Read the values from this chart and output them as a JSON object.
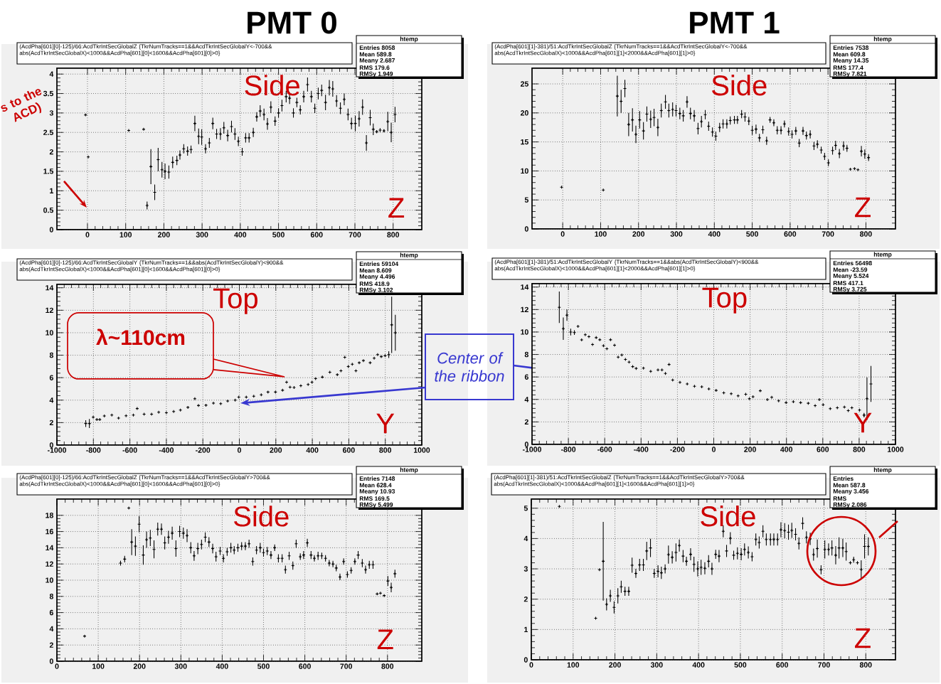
{
  "chart_data": [
    {
      "type": "scatter",
      "subtitle": "PMT 0",
      "title": "(AcdPha[601][0]-125)/66:AcdTkrIntSecGlobalZ {TkrNumTracks==1&&AcdTkrIntSecGlobalY<-700&&abs(AcdTkrIntSecGlobalX)<1000&&AcdPha[601][0]<1600&&AcdPha[601][0]>0}",
      "color": "#000000",
      "marker": "cross",
      "grid": true,
      "xlim": [
        -80,
        875
      ],
      "ylim": [
        0,
        4.15
      ],
      "xticks": [
        0,
        100,
        200,
        300,
        400,
        500,
        600,
        700,
        800
      ],
      "yticks": [
        0,
        0.5,
        1,
        1.5,
        2,
        2.5,
        3,
        3.5,
        4
      ],
      "x": [
        -5,
        2,
        108,
        147,
        156,
        166,
        176,
        185,
        195,
        203,
        213,
        223,
        234,
        242,
        252,
        262,
        271,
        281,
        291,
        299,
        309,
        319,
        328,
        338,
        348,
        357,
        367,
        377,
        386,
        395,
        405,
        414,
        423,
        434,
        443,
        452,
        462,
        471,
        480,
        491,
        500,
        509,
        520,
        529,
        539,
        548,
        557,
        566,
        576,
        586,
        595,
        604,
        613,
        623,
        633,
        642,
        652,
        662,
        672,
        682,
        691,
        701,
        711,
        720,
        730,
        740,
        748,
        757,
        766,
        776,
        786,
        795,
        805
      ],
      "values": [
        2.95,
        1.87,
        2.55,
        2.58,
        0.62,
        1.62,
        0.96,
        1.8,
        1.54,
        1.5,
        1.48,
        1.73,
        1.78,
        1.92,
        2.08,
        2.02,
        2.06,
        2.73,
        2.4,
        2.38,
        2.08,
        2.23,
        2.73,
        2.46,
        2.46,
        2.62,
        2.42,
        2.65,
        2.46,
        2.27,
        2.0,
        2.36,
        2.36,
        2.5,
        2.9,
        3.05,
        2.96,
        2.72,
        3.15,
        2.79,
        3.0,
        3.19,
        3.42,
        3.38,
        3.0,
        3.27,
        3.08,
        3.42,
        3.73,
        3.42,
        3.12,
        3.5,
        3.58,
        3.27,
        3.65,
        3.62,
        3.31,
        3.12,
        3.35,
        2.96,
        2.73,
        2.73,
        2.85,
        3.15,
        2.23,
        2.88,
        2.58,
        2.52,
        2.56,
        2.54,
        2.78,
        2.5,
        2.96
      ],
      "errors": [
        null,
        null,
        null,
        null,
        0.1,
        0.45,
        0.2,
        0.3,
        0.2,
        0.2,
        0.17,
        0.15,
        0.12,
        0.12,
        0.12,
        0.12,
        0.1,
        0.2,
        0.2,
        0.2,
        0.12,
        0.13,
        0.15,
        0.13,
        0.15,
        0.15,
        0.15,
        0.15,
        0.15,
        0.12,
        0.1,
        0.12,
        0.12,
        0.12,
        0.12,
        0.15,
        0.15,
        0.15,
        0.15,
        0.12,
        0.12,
        0.15,
        0.15,
        0.15,
        0.12,
        0.12,
        0.12,
        0.15,
        0.18,
        0.15,
        0.12,
        0.15,
        0.15,
        0.2,
        0.2,
        0.2,
        0.15,
        0.15,
        0.15,
        0.15,
        0.15,
        0.2,
        0.2,
        0.2,
        0.2,
        0.2,
        0.15,
        0.04,
        0.05,
        0.04,
        0.25,
        0.25,
        0.2
      ],
      "annotations": [
        "Side",
        "Z",
        "htemp",
        "Entries 8058",
        "Mean 589.8",
        "Meany 2.687",
        "RMS 179.6",
        "RMSy 1.949",
        "s to the ACD)"
      ]
    },
    {
      "type": "scatter",
      "subtitle": "PMT 1",
      "title": "(AcdPha[601][1]-381)/51:AcdTkrIntSecGlobalZ {TkrNumTracks==1&&AcdTkrIntSecGlobalY<-700&&abs(AcdTkrIntSecGlobalX)<1000&&AcdPha[601][1]<2000&&AcdPha[601][1]>0}",
      "color": "#000000",
      "marker": "cross",
      "grid": true,
      "xlim": [
        -81,
        878
      ],
      "ylim": [
        0,
        27.7
      ],
      "xticks": [
        0,
        100,
        200,
        300,
        400,
        500,
        600,
        700,
        800
      ],
      "yticks": [
        0,
        5,
        10,
        15,
        20,
        25
      ],
      "x": [
        -3,
        107,
        144,
        154,
        164,
        174,
        184,
        193,
        203,
        213,
        222,
        232,
        241,
        251,
        260,
        271,
        280,
        290,
        299,
        309,
        318,
        328,
        337,
        347,
        357,
        366,
        376,
        385,
        395,
        404,
        414,
        423,
        433,
        442,
        453,
        461,
        472,
        481,
        491,
        500,
        510,
        519,
        528,
        538,
        547,
        557,
        566,
        576,
        585,
        596,
        605,
        615,
        624,
        634,
        643,
        653,
        663,
        672,
        682,
        691,
        701,
        712,
        720,
        730,
        741,
        750,
        759,
        770,
        779,
        788,
        797,
        807
      ],
      "values": [
        7.2,
        6.7,
        22.9,
        22.0,
        24.2,
        18.0,
        18.8,
        16.3,
        18.8,
        16.9,
        19.8,
        18.9,
        19.2,
        17.5,
        20.4,
        21.9,
        20.4,
        20.6,
        20.4,
        19.9,
        19.5,
        21.9,
        19.9,
        19.5,
        17.3,
        18.5,
        19.7,
        17.7,
        16.7,
        16.0,
        17.5,
        18.1,
        18.1,
        18.7,
        18.8,
        18.8,
        19.8,
        19.3,
        18.6,
        17.0,
        17.2,
        15.7,
        17.1,
        15.2,
        18.8,
        18.3,
        17.0,
        17.0,
        18.1,
        16.8,
        16.3,
        16.9,
        14.8,
        16.9,
        16.1,
        16.3,
        14.3,
        14.6,
        13.6,
        12.5,
        11.4,
        13.5,
        14.4,
        13.0,
        14.3,
        13.9,
        10.3,
        10.4,
        10.2,
        13.4,
        12.9,
        12.3
      ],
      "errors": [
        null,
        null,
        3.5,
        2,
        1.5,
        2,
        2,
        1.5,
        1.5,
        1.5,
        1.3,
        1.5,
        1.5,
        1.5,
        1.2,
        1.2,
        1.2,
        1.2,
        1,
        1,
        1,
        1,
        1,
        1,
        1,
        1,
        0.8,
        0.8,
        0.8,
        0.8,
        0.8,
        0.8,
        0.8,
        0.7,
        0.7,
        0.7,
        0.7,
        0.8,
        0.7,
        0.8,
        0.8,
        0.7,
        0.7,
        0.7,
        0.5,
        0.6,
        0.7,
        0.7,
        0.6,
        0.7,
        0.7,
        0.7,
        0.7,
        0.7,
        0.7,
        0.7,
        0.7,
        0.7,
        0.6,
        0.6,
        0.6,
        0.7,
        0.8,
        0.8,
        0.8,
        0.6,
        null,
        null,
        null,
        0.9,
        0.8,
        0.6
      ],
      "annotations": [
        "Side",
        "Z",
        "htemp",
        "Entries 7538",
        "Mean 609.8",
        "Meany 14.35",
        "RMS 177.4",
        "RMSy 7.821"
      ]
    },
    {
      "type": "scatter",
      "title": "(AcdPha[601][0]-125)/66:AcdTkrIntSecGlobalY {TkrNumTracks==1&&abs(AcdTkrIntSecGlobalY)<900&&abs(AcdTkrIntSecGlobalX)<1000&&AcdPha[601][0]<1600&&AcdPha[601][0]>0}",
      "color": "#000000",
      "marker": "cross",
      "grid": true,
      "xlim": [
        -1000,
        1000
      ],
      "ylim": [
        0,
        14.3
      ],
      "xticks": [
        -1000,
        -800,
        -600,
        -400,
        -200,
        0,
        200,
        400,
        600,
        800,
        1000
      ],
      "yticks": [
        0,
        2,
        4,
        6,
        8,
        10,
        12,
        14
      ],
      "x": [
        -842,
        -822,
        -801,
        -781,
        -765,
        -740,
        -699,
        -662,
        -621,
        -581,
        -560,
        -522,
        -481,
        -442,
        -400,
        -360,
        -323,
        -282,
        -244,
        -224,
        -183,
        -142,
        -102,
        -64,
        -23,
        -3,
        38,
        79,
        120,
        157,
        198,
        237,
        259,
        278,
        300,
        337,
        377,
        398,
        418,
        455,
        496,
        537,
        557,
        578,
        597,
        619,
        639,
        657,
        680,
        717,
        739,
        758,
        778,
        799,
        819,
        835,
        855
      ],
      "values": [
        1.92,
        1.92,
        2.48,
        2.27,
        2.27,
        2.59,
        2.67,
        2.4,
        2.61,
        2.67,
        3.25,
        2.75,
        2.75,
        2.93,
        2.88,
        2.99,
        3.12,
        3.36,
        4.13,
        3.52,
        3.55,
        3.73,
        3.68,
        3.92,
        4.0,
        4.27,
        4.27,
        4.35,
        4.48,
        4.72,
        4.72,
        4.88,
        5.6,
        5.15,
        5.12,
        5.28,
        5.39,
        5.6,
        5.92,
        6.05,
        6.48,
        6.27,
        6.61,
        7.81,
        6.99,
        7.2,
        6.61,
        7.33,
        7.52,
        7.33,
        7.73,
        8.05,
        7.87,
        7.95,
        8.05,
        10.7,
        10.0
      ],
      "errors": [
        0.3,
        0.4,
        null,
        null,
        null,
        null,
        null,
        null,
        null,
        null,
        null,
        null,
        null,
        null,
        null,
        null,
        null,
        null,
        null,
        null,
        null,
        null,
        null,
        null,
        null,
        null,
        null,
        null,
        null,
        null,
        null,
        null,
        null,
        null,
        null,
        null,
        null,
        null,
        null,
        null,
        null,
        null,
        null,
        null,
        null,
        null,
        null,
        null,
        null,
        null,
        null,
        null,
        null,
        null,
        0.3,
        2.5,
        1.6
      ],
      "annotations": [
        "Top",
        "Y",
        "htemp",
        "Entries 59104",
        "Mean 8.609",
        "Meany 4.496",
        "RMS 418.9",
        "RMSy 3.102",
        "λ~110cm",
        "Center of the ribbon"
      ]
    },
    {
      "type": "scatter",
      "title": "(AcdPha[601][1]-381)/51:AcdTkrIntSecGlobalY {TkrNumTracks==1&&abs(AcdTkrIntSecGlobalY)<900&&abs(AcdTkrIntSecGlobalX)<1000&&AcdPha[601][1]<2000&&AcdPha[601][1]>0}",
      "color": "#000000",
      "marker": "cross",
      "grid": true,
      "xlim": [
        -1000,
        1000
      ],
      "ylim": [
        0,
        14.3
      ],
      "xticks": [
        -1000,
        -800,
        -600,
        -400,
        -200,
        0,
        200,
        400,
        600,
        800,
        1000
      ],
      "yticks": [
        0,
        2,
        4,
        6,
        8,
        10,
        12,
        14
      ],
      "x": [
        -850,
        -828,
        -808,
        -787,
        -767,
        -747,
        -727,
        -707,
        -687,
        -667,
        -647,
        -627,
        -607,
        -588,
        -568,
        -546,
        -526,
        -506,
        -486,
        -466,
        -446,
        -427,
        -387,
        -347,
        -307,
        -285,
        -266,
        -246,
        -226,
        -186,
        -146,
        -106,
        -66,
        -27,
        13,
        55,
        96,
        134,
        176,
        196,
        216,
        256,
        295,
        319,
        357,
        398,
        438,
        478,
        520,
        558,
        581,
        602,
        641,
        680,
        719,
        740,
        760,
        802,
        827,
        843,
        865
      ],
      "values": [
        12.2,
        10.3,
        11.5,
        10.0,
        9.95,
        10.5,
        9.3,
        9.76,
        9.58,
        8.89,
        9.5,
        9.31,
        8.78,
        8.51,
        9.31,
        8.83,
        7.77,
        7.96,
        7.56,
        7.32,
        6.92,
        6.76,
        6.79,
        6.5,
        6.63,
        6.63,
        6.31,
        7.11,
        5.73,
        5.52,
        5.38,
        5.17,
        5.12,
        4.93,
        4.8,
        4.59,
        4.51,
        4.32,
        4.46,
        4.06,
        4.24,
        4.77,
        3.98,
        4.19,
        3.87,
        3.71,
        3.79,
        3.71,
        3.66,
        3.45,
        3.98,
        3.53,
        3.18,
        3.26,
        3.32,
        3.0,
        3.26,
        3.05,
        2.6,
        4.06,
        5.38
      ],
      "errors": [
        1.4,
        1.0,
        0.5,
        0.3,
        0.2,
        null,
        null,
        null,
        null,
        null,
        null,
        null,
        null,
        null,
        null,
        null,
        null,
        null,
        null,
        null,
        null,
        null,
        null,
        null,
        null,
        null,
        null,
        null,
        null,
        null,
        null,
        null,
        null,
        null,
        null,
        null,
        null,
        null,
        null,
        null,
        null,
        null,
        null,
        null,
        null,
        null,
        null,
        null,
        null,
        null,
        null,
        null,
        null,
        null,
        null,
        null,
        null,
        null,
        0.2,
        1.9,
        1.6
      ],
      "annotations": [
        "Top",
        "Y",
        "htemp",
        "Entries 56498",
        "Mean -23.59",
        "Meany 5.524",
        "RMS 417.1",
        "RMSy 3.725"
      ]
    },
    {
      "type": "scatter",
      "title": "(AcdPha[601][0]-125)/66:AcdTkrIntSecGlobalZ {TkrNumTracks==1&&AcdTkrIntSecGlobalY>700&&abs(AcdTkrIntSecGlobalX)<1000&&AcdPha[601][0]<1600&&AcdPha[601][0]>0}",
      "color": "#000000",
      "marker": "cross",
      "grid": true,
      "xlim": [
        0,
        883
      ],
      "ylim": [
        0,
        20
      ],
      "xticks": [
        0,
        100,
        200,
        300,
        400,
        500,
        600,
        700,
        800
      ],
      "yticks": [
        0,
        2,
        4,
        6,
        8,
        10,
        12,
        14,
        16,
        18
      ],
      "x": [
        67,
        154,
        164,
        174,
        181,
        190,
        199,
        209,
        217,
        226,
        235,
        244,
        253,
        261,
        270,
        279,
        288,
        297,
        306,
        315,
        324,
        332,
        341,
        350,
        359,
        368,
        377,
        385,
        395,
        403,
        412,
        421,
        429,
        438,
        447,
        456,
        465,
        474,
        483,
        492,
        500,
        509,
        518,
        527,
        536,
        545,
        553,
        562,
        571,
        579,
        589,
        597,
        606,
        615,
        623,
        632,
        641,
        650,
        659,
        668,
        676,
        685,
        694,
        703,
        712,
        721,
        729,
        739,
        747,
        756,
        765,
        775,
        783,
        792,
        801,
        809,
        818
      ],
      "values": [
        3.1,
        12.1,
        12.6,
        18.9,
        14.7,
        14.2,
        16.9,
        13.1,
        15.0,
        15.2,
        13.8,
        16.3,
        16.3,
        14.6,
        15.3,
        15.8,
        13.9,
        16.0,
        15.8,
        15.5,
        14.0,
        13.0,
        13.9,
        14.4,
        15.3,
        14.7,
        13.9,
        12.9,
        13.6,
        12.7,
        13.5,
        14.0,
        13.7,
        14.0,
        14.2,
        14.2,
        14.5,
        12.3,
        13.7,
        14.0,
        13.4,
        13.6,
        13.1,
        14.0,
        12.7,
        12.7,
        11.3,
        13.0,
        11.8,
        14.5,
        12.9,
        13.1,
        14.6,
        13.1,
        12.7,
        13.0,
        13.0,
        12.7,
        12.1,
        12.0,
        11.5,
        10.4,
        12.3,
        10.7,
        11.2,
        12.3,
        13.1,
        12.1,
        11.3,
        11.9,
        11.9,
        8.3,
        8.4,
        8.1,
        9.9,
        9.1,
        10.8
      ],
      "errors": [
        null,
        0.3,
        0.4,
        null,
        1.6,
        1.2,
        1,
        1.2,
        1.0,
        1,
        1.1,
        0.8,
        0.7,
        0.8,
        0.8,
        0.8,
        1,
        0.7,
        0.7,
        0.8,
        0.7,
        0.6,
        0.7,
        0.6,
        0.6,
        0.6,
        0.6,
        0.6,
        0.5,
        0.5,
        0.5,
        0.6,
        0.5,
        0.5,
        0.5,
        0.5,
        0.5,
        0.5,
        0.5,
        0.6,
        0.5,
        0.5,
        0.5,
        0.4,
        0.5,
        0.5,
        0.5,
        0.5,
        0.5,
        0.5,
        0.4,
        0.5,
        0.5,
        0.5,
        0.4,
        0.5,
        0.4,
        0.4,
        0.4,
        0.4,
        0.4,
        0.4,
        0.4,
        0.4,
        0.4,
        0.4,
        0.5,
        0.5,
        0.5,
        0.5,
        0.5,
        null,
        null,
        null,
        0.6,
        0.6,
        0.5
      ],
      "annotations": [
        "Side",
        "Z",
        "htemp",
        "Entries 7148",
        "Mean 628.4",
        "Meany 10.93",
        "RMS 169.5",
        "RMSy 5.499"
      ]
    },
    {
      "type": "scatter",
      "title": "(AcdPha[601][1]-381)/51:AcdTkrIntSecGlobalZ {TkrNumTracks==1&&AcdTkrIntSecGlobalY>700&&abs(AcdTkrIntSecGlobalX)<1000&&AcdPha[601][1]<1600&&AcdPha[601][1]>0}",
      "color": "#000000",
      "marker": "cross",
      "grid": true,
      "xlim": [
        0,
        871
      ],
      "ylim": [
        0,
        5.3
      ],
      "xticks": [
        0,
        100,
        200,
        300,
        400,
        500,
        600,
        700,
        800
      ],
      "yticks": [
        0,
        1,
        2,
        3,
        4,
        5
      ],
      "x": [
        67,
        154,
        163,
        172,
        180,
        189,
        198,
        207,
        215,
        224,
        233,
        241,
        250,
        259,
        268,
        276,
        285,
        294,
        303,
        311,
        320,
        328,
        337,
        346,
        354,
        363,
        371,
        381,
        389,
        398,
        406,
        415,
        424,
        432,
        441,
        449,
        459,
        467,
        476,
        484,
        493,
        502,
        510,
        519,
        528,
        537,
        545,
        554,
        562,
        572,
        580,
        589,
        597,
        606,
        615,
        623,
        632,
        640,
        649,
        658,
        667,
        675,
        684,
        693,
        702,
        711,
        719,
        728,
        736,
        745,
        753,
        763,
        771,
        780,
        789,
        797,
        806
      ],
      "values": [
        5.06,
        1.37,
        2.97,
        3.25,
        1.83,
        2.11,
        1.73,
        2.11,
        2.41,
        2.26,
        2.26,
        3.12,
        2.85,
        3.13,
        3.13,
        3.59,
        3.69,
        2.85,
        2.92,
        2.87,
        3.0,
        3.47,
        3.38,
        3.54,
        3.77,
        3.42,
        3.25,
        3.48,
        3.15,
        3.0,
        3.05,
        3.02,
        3.25,
        3.0,
        3.48,
        3.42,
        4.24,
        3.59,
        4.01,
        3.45,
        3.51,
        3.48,
        3.64,
        3.54,
        3.4,
        3.97,
        3.87,
        4.24,
        3.97,
        3.97,
        3.97,
        3.97,
        4.29,
        4.26,
        4.21,
        4.27,
        4.14,
        3.84,
        4.5,
        4.04,
        3.99,
        3.47,
        3.67,
        2.97,
        3.64,
        3.64,
        3.69,
        3.45,
        3.69,
        3.69,
        3.57,
        3.2,
        3.3,
        3.2,
        2.98,
        3.74,
        3.74
      ],
      "errors": [
        null,
        null,
        null,
        1.3,
        0.2,
        0.2,
        0.2,
        0.25,
        0.2,
        0.15,
        0.15,
        0.25,
        0.15,
        0.2,
        0.2,
        0.3,
        0.3,
        0.15,
        0.2,
        0.2,
        0.15,
        0.3,
        0.2,
        0.3,
        0.2,
        0.2,
        0.15,
        0.2,
        0.25,
        0.25,
        0.25,
        0.2,
        0.2,
        0.2,
        0.15,
        0.2,
        0.2,
        0.2,
        0.2,
        0.15,
        0.2,
        0.2,
        0.2,
        0.2,
        0.15,
        0.2,
        0.2,
        0.2,
        0.2,
        0.2,
        0.2,
        0.2,
        0.25,
        0.25,
        0.25,
        0.25,
        0.2,
        0.2,
        0.2,
        0.2,
        0.2,
        0.2,
        0.3,
        0.15,
        0.3,
        0.2,
        0.25,
        0.3,
        0.35,
        0.3,
        0.3,
        0.05,
        0.1,
        0.05,
        0.3,
        0.4,
        0.3
      ],
      "annotations": [
        "Side",
        "Z",
        "htemp",
        "Entries",
        "Mean 587.8",
        "Meany 3.456",
        "RMS",
        "RMSy 2.086"
      ]
    }
  ]
}
